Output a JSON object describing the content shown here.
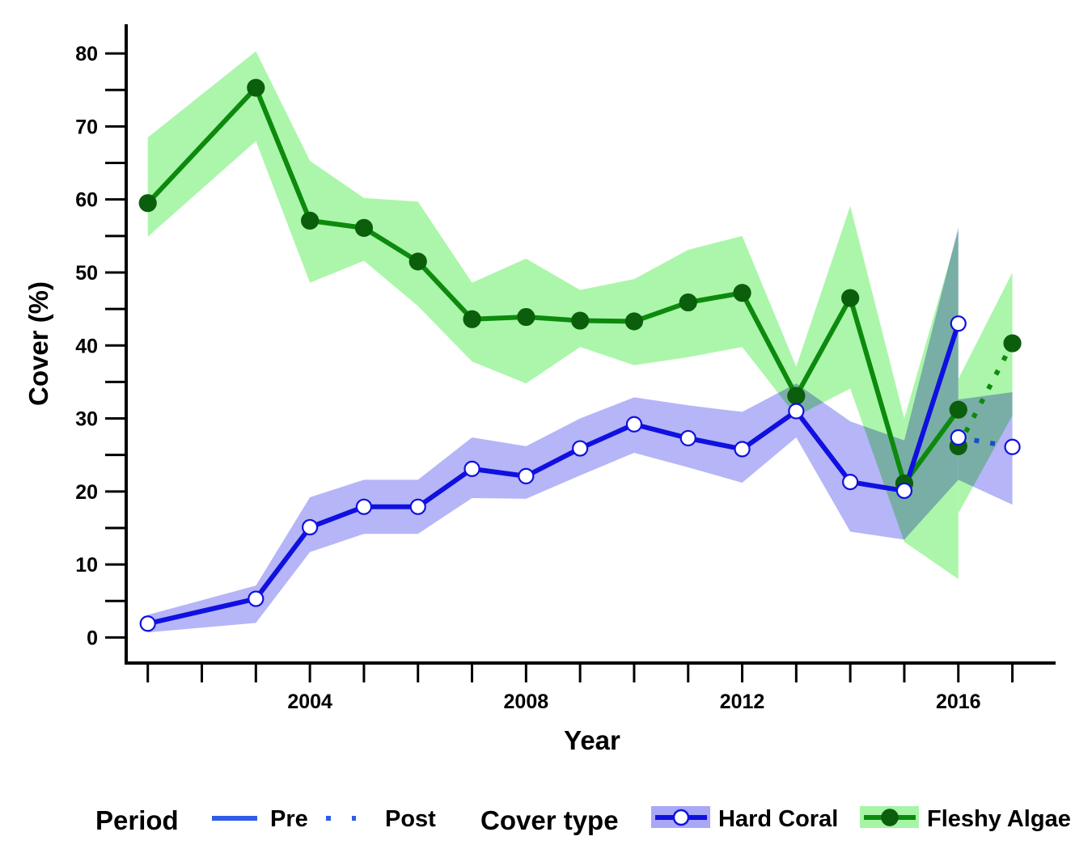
{
  "chart_data": {
    "type": "line",
    "xlabel": "Year",
    "ylabel": "Cover (%)",
    "xlim": [
      2000.6,
      2017.8
    ],
    "ylim": [
      -3.5,
      84
    ],
    "x_ticks": [
      2004,
      2008,
      2012,
      2016
    ],
    "y_ticks": [
      0,
      10,
      20,
      30,
      40,
      50,
      60,
      70,
      80
    ],
    "grid": false,
    "legend_position": "bottom",
    "legend": {
      "period_title": "Period",
      "period_items": [
        "Pre",
        "Post"
      ],
      "cover_title": "Cover type",
      "cover_items": [
        "Hard Coral",
        "Fleshy Algae"
      ]
    },
    "colors": {
      "hard_coral_line_pre": "#1010e0",
      "hard_coral_line_post": "#1a4fc6",
      "hard_coral_band": "#a8a8f7",
      "fleshy_algae_line": "#0d8a0d",
      "fleshy_algae_marker": "#0b5e0b",
      "fleshy_algae_band": "#a6f5a6",
      "overlap_band": "#6fbfae",
      "legend_pre": "#2f5de8"
    },
    "series": [
      {
        "name": "Hard Coral",
        "period": "Pre",
        "x": [
          2001,
          2003,
          2004,
          2005,
          2006,
          2007,
          2008,
          2009,
          2010,
          2011,
          2012,
          2013,
          2014,
          2015,
          2016
        ],
        "y": [
          1.9,
          5.3,
          15.1,
          17.9,
          17.9,
          23.1,
          22.1,
          25.9,
          29.2,
          27.3,
          25.8,
          31.0,
          21.3,
          20.1,
          43.0
        ],
        "lower": [
          0.7,
          2.0,
          11.7,
          14.2,
          14.2,
          19.1,
          19.0,
          22.2,
          25.3,
          23.3,
          21.2,
          27.4,
          14.5,
          13.4,
          21.6
        ],
        "upper": [
          3.1,
          7.1,
          19.2,
          21.6,
          21.6,
          27.4,
          26.2,
          30.0,
          32.9,
          31.8,
          30.9,
          34.8,
          29.6,
          27.0,
          56.2
        ]
      },
      {
        "name": "Hard Coral",
        "period": "Post",
        "x": [
          2016,
          2017
        ],
        "y": [
          27.4,
          26.1
        ],
        "lower": [
          21.6,
          18.2
        ],
        "upper": [
          32.6,
          33.6
        ]
      },
      {
        "name": "Fleshy Algae",
        "period": "Pre",
        "x": [
          2001,
          2003,
          2004,
          2005,
          2006,
          2007,
          2008,
          2009,
          2010,
          2011,
          2012,
          2013,
          2014,
          2015,
          2016
        ],
        "y": [
          59.5,
          75.3,
          57.1,
          56.1,
          51.5,
          43.6,
          43.9,
          43.4,
          43.3,
          45.9,
          47.2,
          33.1,
          46.5,
          21.1,
          31.2
        ],
        "lower": [
          54.9,
          68.0,
          48.6,
          51.6,
          45.4,
          37.8,
          34.8,
          39.8,
          37.3,
          38.4,
          39.8,
          30.3,
          34.1,
          13.1,
          8.0
        ],
        "upper": [
          68.5,
          80.3,
          65.3,
          60.2,
          59.7,
          48.6,
          51.9,
          47.6,
          49.1,
          53.1,
          55.0,
          37.1,
          59.1,
          30.0,
          55.7
        ]
      },
      {
        "name": "Fleshy Algae",
        "period": "Post",
        "x": [
          2016,
          2017
        ],
        "y": [
          26.2,
          40.3
        ],
        "lower": [
          17.0,
          30.4
        ],
        "upper": [
          35.4,
          50.0
        ]
      }
    ]
  }
}
